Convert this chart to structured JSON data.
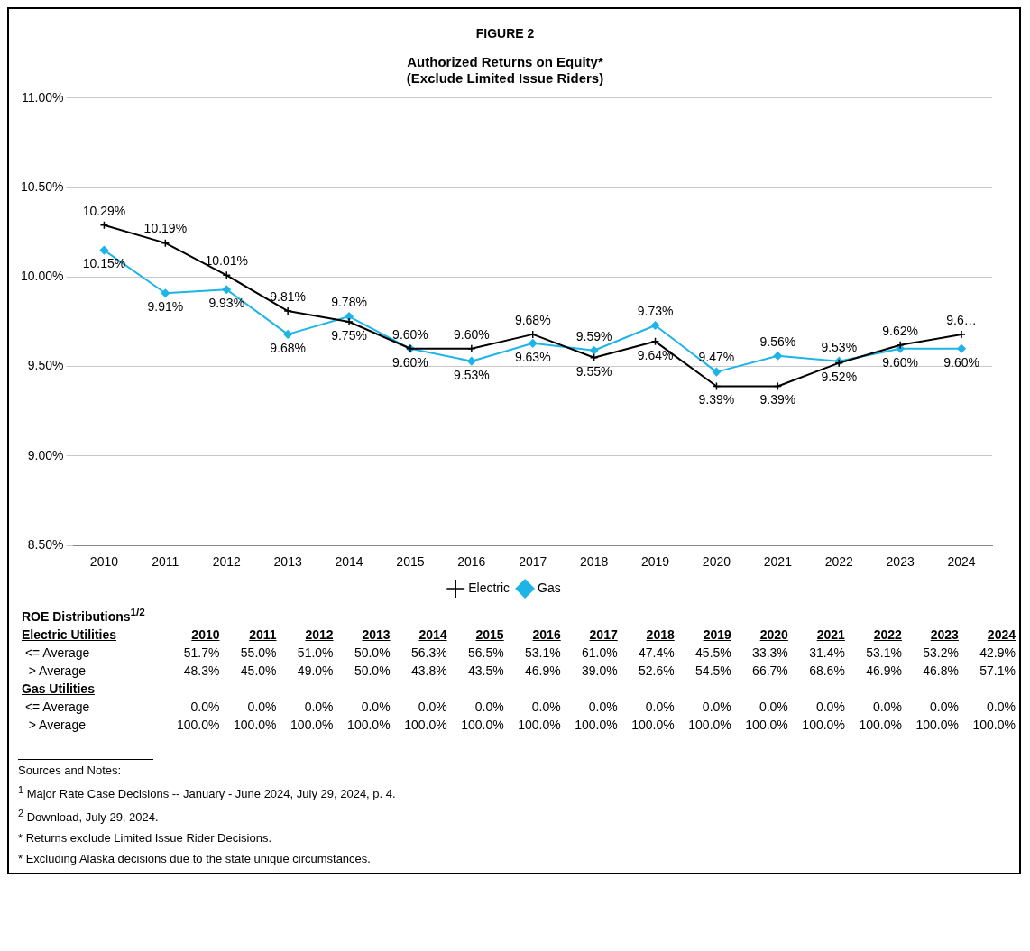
{
  "chart_data": [
    {
      "type": "line",
      "title": "FIGURE 2",
      "subtitle": "Authorized Returns on Equity*\n(Exclude Limited Issue Riders)",
      "categories": [
        "2010",
        "2011",
        "2012",
        "2013",
        "2014",
        "2015",
        "2016",
        "2017",
        "2018",
        "2019",
        "2020",
        "2021",
        "2022",
        "2023",
        "2024"
      ],
      "series": [
        {
          "name": "Electric",
          "color": "#000000",
          "marker": "cross",
          "values": [
            10.29,
            10.19,
            10.01,
            9.81,
            9.75,
            9.6,
            9.6,
            9.68,
            9.55,
            9.64,
            9.39,
            9.39,
            9.52,
            9.62,
            9.68
          ],
          "value_labels": [
            "10.29%",
            "10.19%",
            "10.01%",
            "9.81%",
            "9.75%",
            "9.60%",
            "9.60%",
            "9.68%",
            "9.55%",
            "9.64%",
            "9.39%",
            "9.39%",
            "9.52%",
            "9.62%",
            "9.6…"
          ]
        },
        {
          "name": "Gas",
          "color": "#1fb4e8",
          "marker": "diamond",
          "values": [
            10.15,
            9.91,
            9.93,
            9.68,
            9.78,
            9.6,
            9.53,
            9.63,
            9.59,
            9.73,
            9.47,
            9.56,
            9.53,
            9.6,
            9.6
          ],
          "value_labels": [
            "10.15%",
            "9.91%",
            "9.93%",
            "9.68%",
            "9.78%",
            "9.60%",
            "9.53%",
            "9.63%",
            "9.59%",
            "9.73%",
            "9.47%",
            "9.56%",
            "9.53%",
            "9.60%",
            "9.60%"
          ]
        }
      ],
      "ylim": [
        8.5,
        11
      ],
      "yticks": [
        {
          "value": 8.5,
          "label": "8.50%"
        },
        {
          "value": 9,
          "label": "9.00%"
        },
        {
          "value": 9.5,
          "label": "9.50%"
        },
        {
          "value": 10,
          "label": "10.00%"
        },
        {
          "value": 10.5,
          "label": "10.50%"
        },
        {
          "value": 11,
          "label": "11.00%"
        }
      ],
      "grid": "y",
      "legend": "bottom",
      "line_style": "solid"
    },
    {
      "type": "heatmap",
      "title": "ROE Distributions$^{1/2}$",
      "categories": [
        "2010",
        "2011",
        "2012",
        "2013",
        "2014",
        "2015",
        "2016",
        "2017",
        "2018",
        "2019",
        "2020",
        "2021",
        "2022",
        "2023",
        "2024"
      ],
      "y_categories": [
        "Electric Utilities",
        "<= Average",
        " > Average",
        "Gas Utilities",
        "<= Average",
        " > Average"
      ],
      "cells": [
        [
          null,
          null,
          null,
          null,
          null,
          null,
          null,
          null,
          null,
          null,
          null,
          null,
          null,
          null,
          null
        ],
        [
          51.7,
          55.0,
          51.0,
          50.0,
          56.3,
          56.5,
          53.1,
          61.0,
          47.4,
          45.5,
          33.3,
          31.4,
          53.1,
          53.2,
          42.9
        ],
        [
          48.3,
          45.0,
          49.0,
          50.0,
          43.8,
          43.5,
          46.9,
          39.0,
          52.6,
          54.5,
          66.7,
          68.6,
          46.9,
          46.8,
          57.1
        ],
        [
          null,
          null,
          null,
          null,
          null,
          null,
          null,
          null,
          null,
          null,
          null,
          null,
          null,
          null,
          null
        ],
        [
          0.0,
          0.0,
          0.0,
          0.0,
          0.0,
          0.0,
          0.0,
          0.0,
          0.0,
          0.0,
          0.0,
          0.0,
          0.0,
          0.0,
          0.0
        ],
        [
          100.0,
          100.0,
          100.0,
          100.0,
          100.0,
          100.0,
          100.0,
          100.0,
          100.0,
          100.0,
          100.0,
          100.0,
          100.0,
          100.0,
          100.0
        ]
      ],
      "cell_labels": [
        null,
        [
          "51.7%",
          "55.0%",
          "51.0%",
          "50.0%",
          "56.3%",
          "56.5%",
          "53.1%",
          "61.0%",
          "47.4%",
          "45.5%",
          "33.3%",
          "31.4%",
          "53.1%",
          "53.2%",
          "42.9%"
        ],
        [
          "48.3%",
          "45.0%",
          "49.0%",
          "50.0%",
          "43.8%",
          "43.5%",
          "46.9%",
          "39.0%",
          "52.6%",
          "54.5%",
          "66.7%",
          "68.6%",
          "46.9%",
          "46.8%",
          "57.1%"
        ],
        null,
        [
          "0.0%",
          "0.0%",
          "0.0%",
          "0.0%",
          "0.0%",
          "0.0%",
          "0.0%",
          "0.0%",
          "0.0%",
          "0.0%",
          "0.0%",
          "0.0%",
          "0.0%",
          "0.0%",
          "0.0%"
        ],
        [
          "100.0%",
          "100.0%",
          "100.0%",
          "100.0%",
          "100.0%",
          "100.0%",
          "100.0%",
          "100.0%",
          "100.0%",
          "100.0%",
          "100.0%",
          "100.0%",
          "100.0%",
          "100.0%",
          "100.0%"
        ]
      ],
      "annotations": [
        "Sources and Notes:",
        "$^{1}$ Major Rate Case Decisions -- January - June 2024, July 29, 2024, p. 4.",
        "$^{2}$ Download, July 29, 2024.",
        "* Returns exclude Limited Issue Rider Decisions.",
        "* Excluding Alaska decisions due to the state unique circumstances."
      ]
    }
  ]
}
